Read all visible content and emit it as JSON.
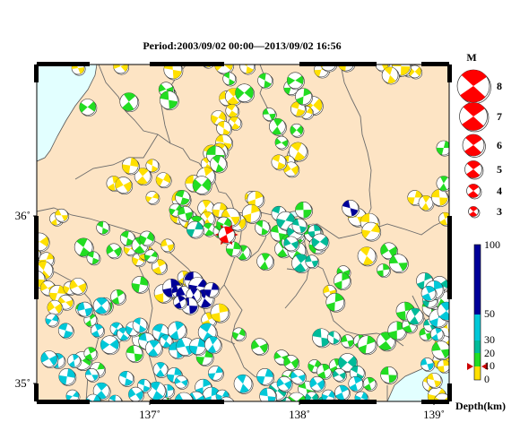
{
  "title": "Period:2003/09/02 00:00––2013/09/02 16:56",
  "colors": {
    "land": "#fde4c4",
    "sea": "#e2ffff",
    "border": "#6b6b6b",
    "frame": "#000000",
    "compression": "#ff0000",
    "depth_0_10": "#ffe000",
    "depth_10_20": "#22dd22",
    "depth_20_30": "#00bb99",
    "depth_30_50": "#00c8d8",
    "depth_50_100": "#000099"
  },
  "axes": {
    "longitude_ticks": [
      "137˚",
      "138˚",
      "139˚"
    ],
    "latitude_ticks": [
      "36˚",
      "35˚"
    ]
  },
  "magnitude_legend": {
    "label": "M",
    "items": [
      "8",
      "7",
      "6",
      "5",
      "4",
      "3"
    ]
  },
  "depth_scale": {
    "label": "Depth(km)",
    "ticks": [
      "100",
      "50",
      "30",
      "20",
      "10",
      "0"
    ]
  },
  "lakes": [
    "lake-suwa",
    "lake-hamana"
  ],
  "highlighted_event": {
    "marker": "red-star",
    "depth_marker": "red-arrows"
  },
  "chart_data": {
    "type": "scatter",
    "description_kind": "focal-mechanism map",
    "x_axis": "longitude",
    "y_axis": "latitude",
    "xlim": [
      136.2,
      139.2
    ],
    "ylim": [
      34.9,
      36.8
    ],
    "depth_range_km": [
      0,
      100
    ],
    "depth_ticks_km": [
      0,
      10,
      20,
      30,
      50,
      100
    ],
    "magnitude_legend": [
      8,
      7,
      6,
      5,
      4,
      3
    ],
    "series": [
      {
        "depth_class": "0-10",
        "points": [
          [
            136.5,
            36.78
          ],
          [
            136.81,
            36.79
          ],
          [
            137.19,
            36.77
          ],
          [
            137.44,
            36.82
          ],
          [
            137.56,
            36.8
          ],
          [
            137.73,
            36.79
          ],
          [
            138.27,
            36.77
          ],
          [
            138.32,
            36.81
          ],
          [
            138.45,
            36.81
          ],
          [
            138.71,
            36.8
          ],
          [
            138.82,
            36.78
          ],
          [
            138.9,
            36.77
          ],
          [
            138.95,
            36.76
          ],
          [
            138.85,
            36.79
          ],
          [
            138.77,
            36.74
          ],
          [
            138.21,
            36.57
          ],
          [
            138.16,
            36.53
          ],
          [
            138.1,
            36.55
          ],
          [
            137.58,
            36.61
          ],
          [
            137.63,
            36.62
          ],
          [
            137.62,
            36.54
          ],
          [
            137.64,
            36.47
          ],
          [
            137.52,
            36.5
          ],
          [
            137.56,
            36.44
          ],
          [
            137.56,
            36.36
          ],
          [
            137.53,
            36.31
          ],
          [
            137.47,
            36.3
          ],
          [
            137.44,
            36.24
          ],
          [
            137.43,
            36.17
          ],
          [
            137.34,
            36.13
          ],
          [
            137.25,
            36.04
          ],
          [
            137.23,
            35.95
          ],
          [
            137.3,
            35.93
          ],
          [
            137.43,
            35.99
          ],
          [
            137.44,
            35.93
          ],
          [
            137.53,
            35.98
          ],
          [
            137.76,
            36.05
          ],
          [
            137.79,
            36.04
          ],
          [
            137.76,
            35.96
          ],
          [
            137.66,
            35.91
          ],
          [
            137.61,
            35.94
          ],
          [
            138.07,
            36.29
          ],
          [
            138.1,
            36.31
          ],
          [
            138.03,
            36.25
          ],
          [
            138.05,
            36.21
          ],
          [
            137.96,
            36.25
          ],
          [
            137.04,
            36.23
          ],
          [
            136.97,
            36.17
          ],
          [
            137.12,
            36.15
          ],
          [
            137.04,
            36.05
          ],
          [
            136.88,
            36.23
          ],
          [
            136.76,
            36.13
          ],
          [
            136.83,
            36.12
          ],
          [
            136.34,
            35.93
          ],
          [
            136.38,
            35.95
          ],
          [
            136.22,
            35.8
          ],
          [
            136.18,
            35.73
          ],
          [
            136.27,
            35.7
          ],
          [
            136.25,
            35.64
          ],
          [
            136.2,
            35.59
          ],
          [
            136.28,
            35.54
          ],
          [
            136.35,
            35.51
          ],
          [
            136.44,
            35.54
          ],
          [
            136.5,
            35.55
          ],
          [
            136.41,
            35.46
          ],
          [
            136.33,
            35.43
          ],
          [
            136.88,
            35.76
          ],
          [
            136.94,
            35.7
          ],
          [
            136.99,
            35.74
          ],
          [
            137.09,
            35.66
          ],
          [
            137.15,
            35.78
          ],
          [
            137.27,
            35.6
          ],
          [
            137.33,
            35.58
          ],
          [
            137.2,
            35.53
          ],
          [
            137.12,
            35.51
          ],
          [
            137.45,
            35.36
          ],
          [
            137.53,
            35.4
          ],
          [
            138.33,
            35.52
          ],
          [
            138.53,
            35.94
          ],
          [
            138.62,
            35.91
          ],
          [
            138.63,
            35.86
          ],
          [
            138.6,
            35.72
          ],
          [
            138.95,
            36.05
          ],
          [
            139.03,
            36.02
          ],
          [
            139.13,
            36.05
          ],
          [
            139.17,
            35.93
          ],
          [
            139.19,
            35.31
          ],
          [
            139.16,
            35.22
          ],
          [
            139.14,
            35.13
          ],
          [
            139.06,
            35.0
          ],
          [
            139.11,
            34.93
          ],
          [
            139.15,
            34.9
          ],
          [
            139.09,
            35.02
          ],
          [
            139.16,
            35.1
          ]
        ]
      },
      {
        "depth_class": "10-20",
        "points": [
          [
            136.57,
            36.56
          ],
          [
            136.87,
            36.59
          ],
          [
            137.16,
            36.64
          ],
          [
            137.14,
            36.66
          ],
          [
            137.16,
            36.6
          ],
          [
            137.6,
            36.72
          ],
          [
            137.71,
            36.64
          ],
          [
            137.86,
            36.71
          ],
          [
            138.05,
            36.67
          ],
          [
            138.08,
            36.71
          ],
          [
            138.14,
            36.62
          ],
          [
            137.89,
            36.52
          ],
          [
            137.95,
            36.45
          ],
          [
            137.98,
            36.36
          ],
          [
            138.09,
            36.43
          ],
          [
            137.5,
            36.29
          ],
          [
            137.52,
            36.24
          ],
          [
            137.4,
            36.12
          ],
          [
            137.21,
            35.98
          ],
          [
            137.26,
            36.05
          ],
          [
            137.28,
            35.96
          ],
          [
            137.36,
            35.9
          ],
          [
            137.45,
            35.87
          ],
          [
            137.53,
            35.86
          ],
          [
            137.56,
            35.9
          ],
          [
            137.84,
            35.88
          ],
          [
            137.96,
            35.85
          ],
          [
            137.99,
            35.76
          ],
          [
            138.04,
            35.8
          ],
          [
            138.1,
            35.83
          ],
          [
            138.09,
            35.88
          ],
          [
            138.14,
            35.98
          ],
          [
            138.21,
            35.85
          ],
          [
            138.24,
            35.78
          ],
          [
            138.09,
            35.75
          ],
          [
            137.86,
            35.69
          ],
          [
            137.7,
            35.74
          ],
          [
            137.63,
            35.76
          ],
          [
            138.43,
            35.63
          ],
          [
            138.42,
            35.58
          ],
          [
            138.37,
            35.46
          ],
          [
            138.76,
            35.75
          ],
          [
            138.83,
            35.68
          ],
          [
            138.72,
            35.64
          ],
          [
            136.54,
            35.77
          ],
          [
            136.61,
            35.71
          ],
          [
            136.76,
            35.75
          ],
          [
            136.86,
            35.82
          ],
          [
            136.68,
            35.88
          ],
          [
            136.95,
            35.78
          ],
          [
            137.0,
            35.82
          ],
          [
            137.03,
            35.72
          ],
          [
            136.95,
            35.56
          ],
          [
            136.79,
            35.49
          ],
          [
            136.69,
            35.44
          ],
          [
            136.59,
            35.36
          ],
          [
            136.53,
            35.42
          ],
          [
            136.53,
            35.13
          ],
          [
            136.59,
            35.17
          ],
          [
            136.64,
            35.08
          ],
          [
            136.96,
            35.25
          ],
          [
            136.91,
            35.17
          ],
          [
            137.12,
            34.94
          ],
          [
            137.42,
            35.15
          ],
          [
            137.67,
            35.28
          ],
          [
            137.82,
            35.21
          ],
          [
            137.98,
            35.15
          ],
          [
            138.05,
            35.12
          ],
          [
            138.03,
            35.04
          ],
          [
            138.22,
            35.1
          ],
          [
            138.29,
            35.07
          ],
          [
            138.38,
            35.1
          ],
          [
            138.46,
            35.24
          ],
          [
            138.55,
            35.24
          ],
          [
            138.6,
            35.22
          ],
          [
            138.74,
            35.24
          ],
          [
            138.82,
            35.3
          ],
          [
            138.91,
            35.33
          ],
          [
            138.88,
            35.41
          ],
          [
            139.03,
            35.28
          ],
          [
            139.14,
            35.19
          ],
          [
            139.07,
            35.43
          ],
          [
            139.1,
            35.47
          ],
          [
            139.14,
            35.48
          ],
          [
            139.16,
            36.33
          ],
          [
            139.16,
            36.13
          ],
          [
            138.76,
            35.05
          ],
          [
            138.62,
            35.0
          ],
          [
            138.16,
            34.97
          ],
          [
            138.09,
            34.9
          ]
        ]
      },
      {
        "depth_class": "20-30",
        "points": [
          [
            137.35,
            35.87
          ],
          [
            137.96,
            35.96
          ],
          [
            138.01,
            35.92
          ],
          [
            138.08,
            35.86
          ],
          [
            138.11,
            35.89
          ],
          [
            138.22,
            35.86
          ],
          [
            138.26,
            35.8
          ],
          [
            138.12,
            35.68
          ],
          [
            138.2,
            35.69
          ],
          [
            138.05,
            35.79
          ],
          [
            138.27,
            35.26
          ],
          [
            138.36,
            35.26
          ],
          [
            138.46,
            35.12
          ],
          [
            138.53,
            35.06
          ],
          [
            139.06,
            35.47
          ],
          [
            139.13,
            35.56
          ],
          [
            139.02,
            35.58
          ],
          [
            139.06,
            35.33
          ],
          [
            138.95,
            35.38
          ],
          [
            138.4,
            35.05
          ],
          [
            138.2,
            34.92
          ],
          [
            138.3,
            34.88
          ],
          [
            138.0,
            34.88
          ],
          [
            137.95,
            34.96
          ]
        ]
      },
      {
        "depth_class": "30-50",
        "points": [
          [
            136.31,
            35.36
          ],
          [
            136.41,
            35.3
          ],
          [
            136.55,
            35.42
          ],
          [
            136.67,
            35.44
          ],
          [
            136.78,
            35.31
          ],
          [
            136.83,
            35.28
          ],
          [
            136.9,
            35.31
          ],
          [
            136.95,
            35.33
          ],
          [
            137.0,
            35.24
          ],
          [
            137.05,
            35.2
          ],
          [
            137.1,
            35.29
          ],
          [
            137.14,
            35.24
          ],
          [
            137.22,
            35.3
          ],
          [
            137.22,
            35.19
          ],
          [
            137.28,
            35.21
          ],
          [
            137.37,
            35.21
          ],
          [
            137.44,
            35.29
          ],
          [
            137.48,
            35.22
          ],
          [
            137.1,
            35.08
          ],
          [
            137.2,
            35.05
          ],
          [
            137.25,
            35.01
          ],
          [
            137.41,
            34.98
          ],
          [
            137.47,
            34.93
          ],
          [
            137.36,
            34.91
          ],
          [
            137.27,
            34.9
          ],
          [
            137.15,
            34.96
          ],
          [
            137.07,
            34.96
          ],
          [
            136.98,
            34.99
          ],
          [
            136.92,
            34.94
          ],
          [
            136.85,
            35.03
          ],
          [
            136.77,
            34.9
          ],
          [
            136.67,
            34.96
          ],
          [
            136.61,
            34.9
          ],
          [
            136.46,
            34.93
          ],
          [
            136.42,
            35.04
          ],
          [
            136.35,
            35.13
          ],
          [
            136.29,
            35.14
          ],
          [
            136.47,
            35.13
          ],
          [
            136.6,
            35.05
          ],
          [
            136.73,
            35.22
          ],
          [
            136.64,
            35.3
          ],
          [
            137.5,
            35.06
          ],
          [
            137.7,
            35.0
          ],
          [
            137.88,
            34.93
          ],
          [
            138.0,
            35.0
          ],
          [
            137.86,
            35.04
          ],
          [
            137.55,
            34.93
          ],
          [
            137.58,
            34.88
          ],
          [
            138.1,
            35.04
          ],
          [
            138.24,
            35.0
          ],
          [
            138.32,
            34.93
          ],
          [
            138.56,
            34.92
          ],
          [
            138.52,
            35.0
          ],
          [
            138.42,
            34.95
          ],
          [
            139.04,
            35.11
          ],
          [
            139.11,
            35.28
          ],
          [
            139.12,
            35.37
          ],
          [
            139.18,
            35.41
          ],
          [
            139.09,
            35.53
          ],
          [
            139.05,
            35.51
          ]
        ]
      },
      {
        "depth_class": "50-100",
        "points": [
          [
            137.18,
            35.54
          ],
          [
            137.23,
            35.52
          ],
          [
            137.28,
            35.5
          ],
          [
            137.34,
            35.58
          ],
          [
            137.37,
            35.55
          ],
          [
            137.42,
            35.48
          ],
          [
            137.47,
            35.53
          ],
          [
            137.34,
            35.5
          ],
          [
            137.31,
            35.44
          ],
          [
            137.24,
            35.46
          ],
          [
            138.48,
            35.99
          ]
        ]
      }
    ],
    "highlighted_event": {
      "lon": 137.58,
      "lat": 35.84,
      "depth_km": 10
    }
  }
}
